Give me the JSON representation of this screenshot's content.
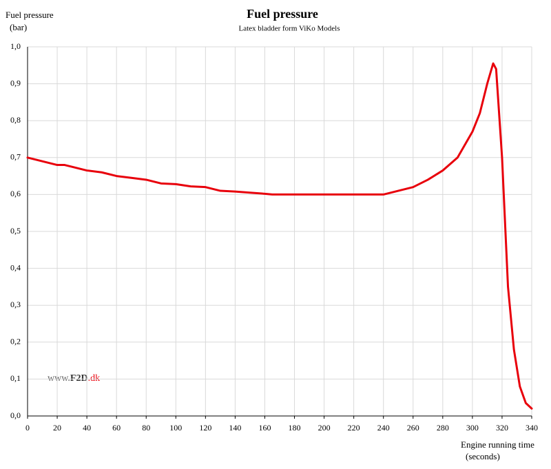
{
  "chart_data": {
    "type": "line",
    "title": "Fuel pressure",
    "subtitle": "Latex bladder form ViKo Models",
    "ylabel": [
      "Fuel pressure",
      "(bar)"
    ],
    "xlabel": [
      "Engine running time",
      "(seconds)"
    ],
    "watermark": [
      "www.",
      "F2D",
      ".dk"
    ],
    "x": [
      0,
      10,
      20,
      25,
      30,
      40,
      50,
      60,
      70,
      80,
      90,
      100,
      110,
      120,
      130,
      140,
      150,
      160,
      165,
      200,
      240,
      250,
      260,
      270,
      280,
      290,
      300,
      305,
      310,
      314,
      316,
      320,
      324,
      328,
      332,
      336,
      340
    ],
    "series": [
      {
        "name": "Fuel pressure",
        "color": "#e8000b",
        "values": [
          0.7,
          0.69,
          0.68,
          0.68,
          0.675,
          0.665,
          0.66,
          0.65,
          0.645,
          0.64,
          0.63,
          0.628,
          0.622,
          0.62,
          0.61,
          0.608,
          0.605,
          0.602,
          0.6,
          0.6,
          0.6,
          0.61,
          0.62,
          0.64,
          0.665,
          0.7,
          0.77,
          0.82,
          0.9,
          0.955,
          0.94,
          0.7,
          0.35,
          0.18,
          0.08,
          0.035,
          0.02
        ]
      }
    ],
    "xlim": [
      0,
      340
    ],
    "xticks": [
      0,
      20,
      40,
      60,
      80,
      100,
      120,
      140,
      160,
      180,
      200,
      220,
      240,
      260,
      280,
      300,
      320,
      340
    ],
    "ylim": [
      0,
      1
    ],
    "yticks": [
      {
        "value": 0,
        "label": "0,0"
      },
      {
        "value": 0.1,
        "label": "0,1"
      },
      {
        "value": 0.2,
        "label": "0,2"
      },
      {
        "value": 0.3,
        "label": "0,3"
      },
      {
        "value": 0.4,
        "label": "0,4"
      },
      {
        "value": 0.5,
        "label": "0,5"
      },
      {
        "value": 0.6,
        "label": "0,6"
      },
      {
        "value": 0.7,
        "label": "0,7"
      },
      {
        "value": 0.8,
        "label": "0,8"
      },
      {
        "value": 0.9,
        "label": "0,9"
      },
      {
        "value": 1,
        "label": "1,0"
      }
    ],
    "grid": true
  }
}
